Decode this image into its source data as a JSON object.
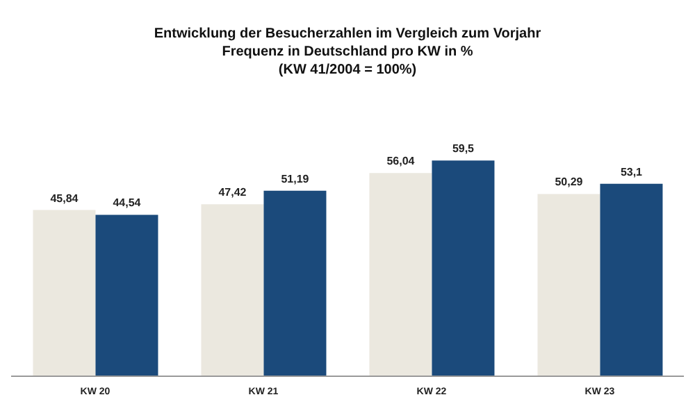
{
  "chart_data": {
    "type": "bar",
    "title": "Entwicklung der Besucherzahlen im Vergleich zum Vorjahr\nFrequenz in Deutschland pro KW in %\n(KW 41/2004 = 100%)",
    "categories": [
      "KW 20",
      "KW 21",
      "KW 22",
      "KW 23"
    ],
    "series": [
      {
        "color": "#ebe8df",
        "values": [
          45.84,
          47.42,
          56.04,
          50.29
        ],
        "value_labels": [
          "45,84",
          "47,42",
          "56,04",
          "50,29"
        ]
      },
      {
        "color": "#1b4a7b",
        "values": [
          44.54,
          51.19,
          59.5,
          53.1
        ],
        "value_labels": [
          "44,54",
          "51,19",
          "59,5",
          "53,1"
        ]
      }
    ],
    "grid": false,
    "legend": false
  }
}
